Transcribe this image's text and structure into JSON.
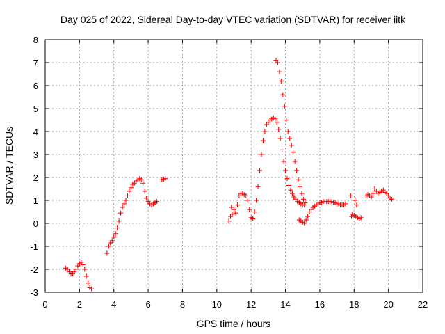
{
  "chart_data": {
    "type": "scatter",
    "title": "Day 025 of 2022, Sidereal Day-to-day VTEC variation (SDTVAR) for receiver iitk",
    "xlabel": "GPS time / hours",
    "ylabel": "SDTVAR / TECUs",
    "xlim": [
      0,
      22
    ],
    "ylim": [
      -3,
      8
    ],
    "xticks": [
      "0",
      "2",
      "4",
      "6",
      "8",
      "10",
      "12",
      "14",
      "16",
      "18",
      "20",
      "22"
    ],
    "yticks": [
      "-3",
      "-2",
      "-1",
      "0",
      "1",
      "2",
      "3",
      "4",
      "5",
      "6",
      "7",
      "8"
    ],
    "grid": true,
    "marker": "plus",
    "color": "#ff0000",
    "series": [
      {
        "name": "seg1",
        "points": [
          [
            1.2,
            -1.95
          ],
          [
            1.3,
            -2.0
          ],
          [
            1.4,
            -2.1
          ],
          [
            1.5,
            -2.2
          ],
          [
            1.6,
            -2.2
          ],
          [
            1.7,
            -2.1
          ],
          [
            1.8,
            -2.0
          ],
          [
            1.9,
            -1.85
          ],
          [
            2.0,
            -1.75
          ],
          [
            2.1,
            -1.7
          ],
          [
            2.2,
            -1.8
          ],
          [
            2.3,
            -2.0
          ],
          [
            2.4,
            -2.3
          ],
          [
            2.5,
            -2.6
          ],
          [
            2.6,
            -2.8
          ],
          [
            2.7,
            -2.85
          ]
        ]
      },
      {
        "name": "seg2",
        "points": [
          [
            3.6,
            -1.3
          ],
          [
            3.7,
            -1.0
          ],
          [
            3.8,
            -0.85
          ],
          [
            3.9,
            -0.75
          ],
          [
            4.0,
            -0.6
          ],
          [
            4.1,
            -0.45
          ],
          [
            4.2,
            -0.2
          ],
          [
            4.3,
            0.1
          ],
          [
            4.4,
            0.45
          ],
          [
            4.5,
            0.7
          ],
          [
            4.6,
            0.85
          ],
          [
            4.7,
            1.0
          ],
          [
            4.8,
            1.2
          ],
          [
            4.9,
            1.4
          ],
          [
            5.0,
            1.55
          ],
          [
            5.1,
            1.7
          ],
          [
            5.2,
            1.75
          ],
          [
            5.3,
            1.85
          ],
          [
            5.4,
            1.9
          ],
          [
            5.5,
            1.95
          ],
          [
            5.6,
            1.9
          ],
          [
            5.7,
            1.75
          ],
          [
            5.8,
            1.4
          ],
          [
            5.9,
            1.1
          ],
          [
            6.0,
            0.95
          ],
          [
            6.1,
            0.85
          ],
          [
            6.2,
            0.8
          ],
          [
            6.3,
            0.85
          ],
          [
            6.4,
            0.9
          ],
          [
            6.5,
            0.95
          ]
        ]
      },
      {
        "name": "seg3",
        "points": [
          [
            6.8,
            1.9
          ],
          [
            6.9,
            1.92
          ],
          [
            7.0,
            1.95
          ]
        ]
      },
      {
        "name": "seg4",
        "points": [
          [
            10.7,
            0.1
          ],
          [
            10.8,
            0.3
          ],
          [
            10.85,
            0.7
          ],
          [
            10.9,
            0.4
          ],
          [
            11.0,
            0.6
          ],
          [
            11.1,
            0.45
          ],
          [
            11.2,
            0.8
          ],
          [
            11.3,
            1.2
          ],
          [
            11.4,
            1.3
          ],
          [
            11.5,
            1.3
          ],
          [
            11.6,
            1.25
          ],
          [
            11.7,
            1.2
          ],
          [
            11.8,
            1.0
          ],
          [
            11.9,
            0.6
          ],
          [
            12.0,
            0.25
          ],
          [
            12.1,
            0.2
          ],
          [
            12.2,
            0.5
          ],
          [
            12.3,
            1.0
          ],
          [
            12.4,
            1.6
          ],
          [
            12.5,
            2.3
          ],
          [
            12.6,
            3.0
          ],
          [
            12.7,
            3.6
          ],
          [
            12.8,
            4.0
          ],
          [
            12.9,
            4.3
          ],
          [
            13.0,
            4.4
          ],
          [
            13.1,
            4.5
          ],
          [
            13.2,
            4.55
          ],
          [
            13.3,
            4.6
          ],
          [
            13.4,
            4.55
          ],
          [
            13.5,
            4.4
          ],
          [
            13.6,
            4.1
          ],
          [
            13.7,
            3.7
          ],
          [
            13.8,
            3.2
          ],
          [
            13.9,
            2.7
          ],
          [
            14.0,
            2.3
          ],
          [
            14.1,
            1.95
          ],
          [
            14.2,
            1.65
          ],
          [
            14.3,
            1.45
          ],
          [
            14.4,
            1.3
          ],
          [
            14.5,
            1.15
          ],
          [
            14.6,
            1.05
          ],
          [
            14.7,
            0.95
          ],
          [
            14.8,
            0.9
          ],
          [
            14.9,
            0.85
          ],
          [
            15.0,
            0.8
          ],
          [
            15.1,
            0.8
          ]
        ]
      },
      {
        "name": "seg5",
        "points": [
          [
            13.45,
            7.1
          ],
          [
            13.55,
            7.0
          ],
          [
            13.65,
            6.6
          ],
          [
            13.75,
            6.2
          ],
          [
            13.85,
            5.6
          ],
          [
            13.95,
            5.1
          ],
          [
            14.05,
            4.5
          ],
          [
            14.15,
            4.0
          ],
          [
            14.25,
            3.7
          ],
          [
            14.35,
            3.4
          ],
          [
            14.45,
            3.1
          ],
          [
            14.55,
            2.7
          ],
          [
            14.65,
            2.3
          ],
          [
            14.75,
            1.9
          ],
          [
            14.85,
            1.6
          ],
          [
            14.95,
            1.3
          ],
          [
            15.05,
            1.05
          ],
          [
            15.15,
            0.9
          ]
        ]
      },
      {
        "name": "seg6",
        "points": [
          [
            14.8,
            0.15
          ],
          [
            14.9,
            0.1
          ],
          [
            15.0,
            0.05
          ],
          [
            15.1,
            0.0
          ],
          [
            15.2,
            0.15
          ],
          [
            15.3,
            0.3
          ],
          [
            15.4,
            0.5
          ],
          [
            15.5,
            0.6
          ],
          [
            15.6,
            0.7
          ],
          [
            15.7,
            0.75
          ],
          [
            15.8,
            0.8
          ],
          [
            15.9,
            0.85
          ],
          [
            16.0,
            0.9
          ],
          [
            16.1,
            0.9
          ],
          [
            16.2,
            0.95
          ],
          [
            16.3,
            0.95
          ],
          [
            16.4,
            0.95
          ],
          [
            16.5,
            0.95
          ],
          [
            16.6,
            0.95
          ],
          [
            16.7,
            0.95
          ],
          [
            16.8,
            0.9
          ],
          [
            16.9,
            0.9
          ],
          [
            17.0,
            0.85
          ],
          [
            17.1,
            0.85
          ],
          [
            17.2,
            0.8
          ],
          [
            17.3,
            0.8
          ],
          [
            17.4,
            0.8
          ],
          [
            17.5,
            0.85
          ]
        ]
      },
      {
        "name": "seg7",
        "points": [
          [
            17.8,
            1.2
          ],
          [
            17.85,
            0.3
          ],
          [
            17.9,
            0.4
          ],
          [
            18.0,
            0.35
          ],
          [
            18.1,
            0.3
          ],
          [
            18.2,
            0.25
          ],
          [
            18.3,
            0.2
          ],
          [
            18.4,
            0.25
          ],
          [
            18.05,
            1.0
          ],
          [
            18.15,
            0.8
          ]
        ]
      },
      {
        "name": "seg8",
        "points": [
          [
            18.7,
            1.2
          ],
          [
            18.8,
            1.25
          ],
          [
            18.9,
            1.2
          ],
          [
            19.0,
            1.15
          ],
          [
            19.1,
            1.3
          ],
          [
            19.2,
            1.5
          ],
          [
            19.3,
            1.4
          ],
          [
            19.4,
            1.3
          ],
          [
            19.5,
            1.35
          ],
          [
            19.6,
            1.4
          ],
          [
            19.7,
            1.45
          ],
          [
            19.8,
            1.35
          ],
          [
            19.9,
            1.3
          ],
          [
            20.0,
            1.2
          ],
          [
            20.1,
            1.1
          ],
          [
            20.2,
            1.05
          ]
        ]
      }
    ]
  }
}
